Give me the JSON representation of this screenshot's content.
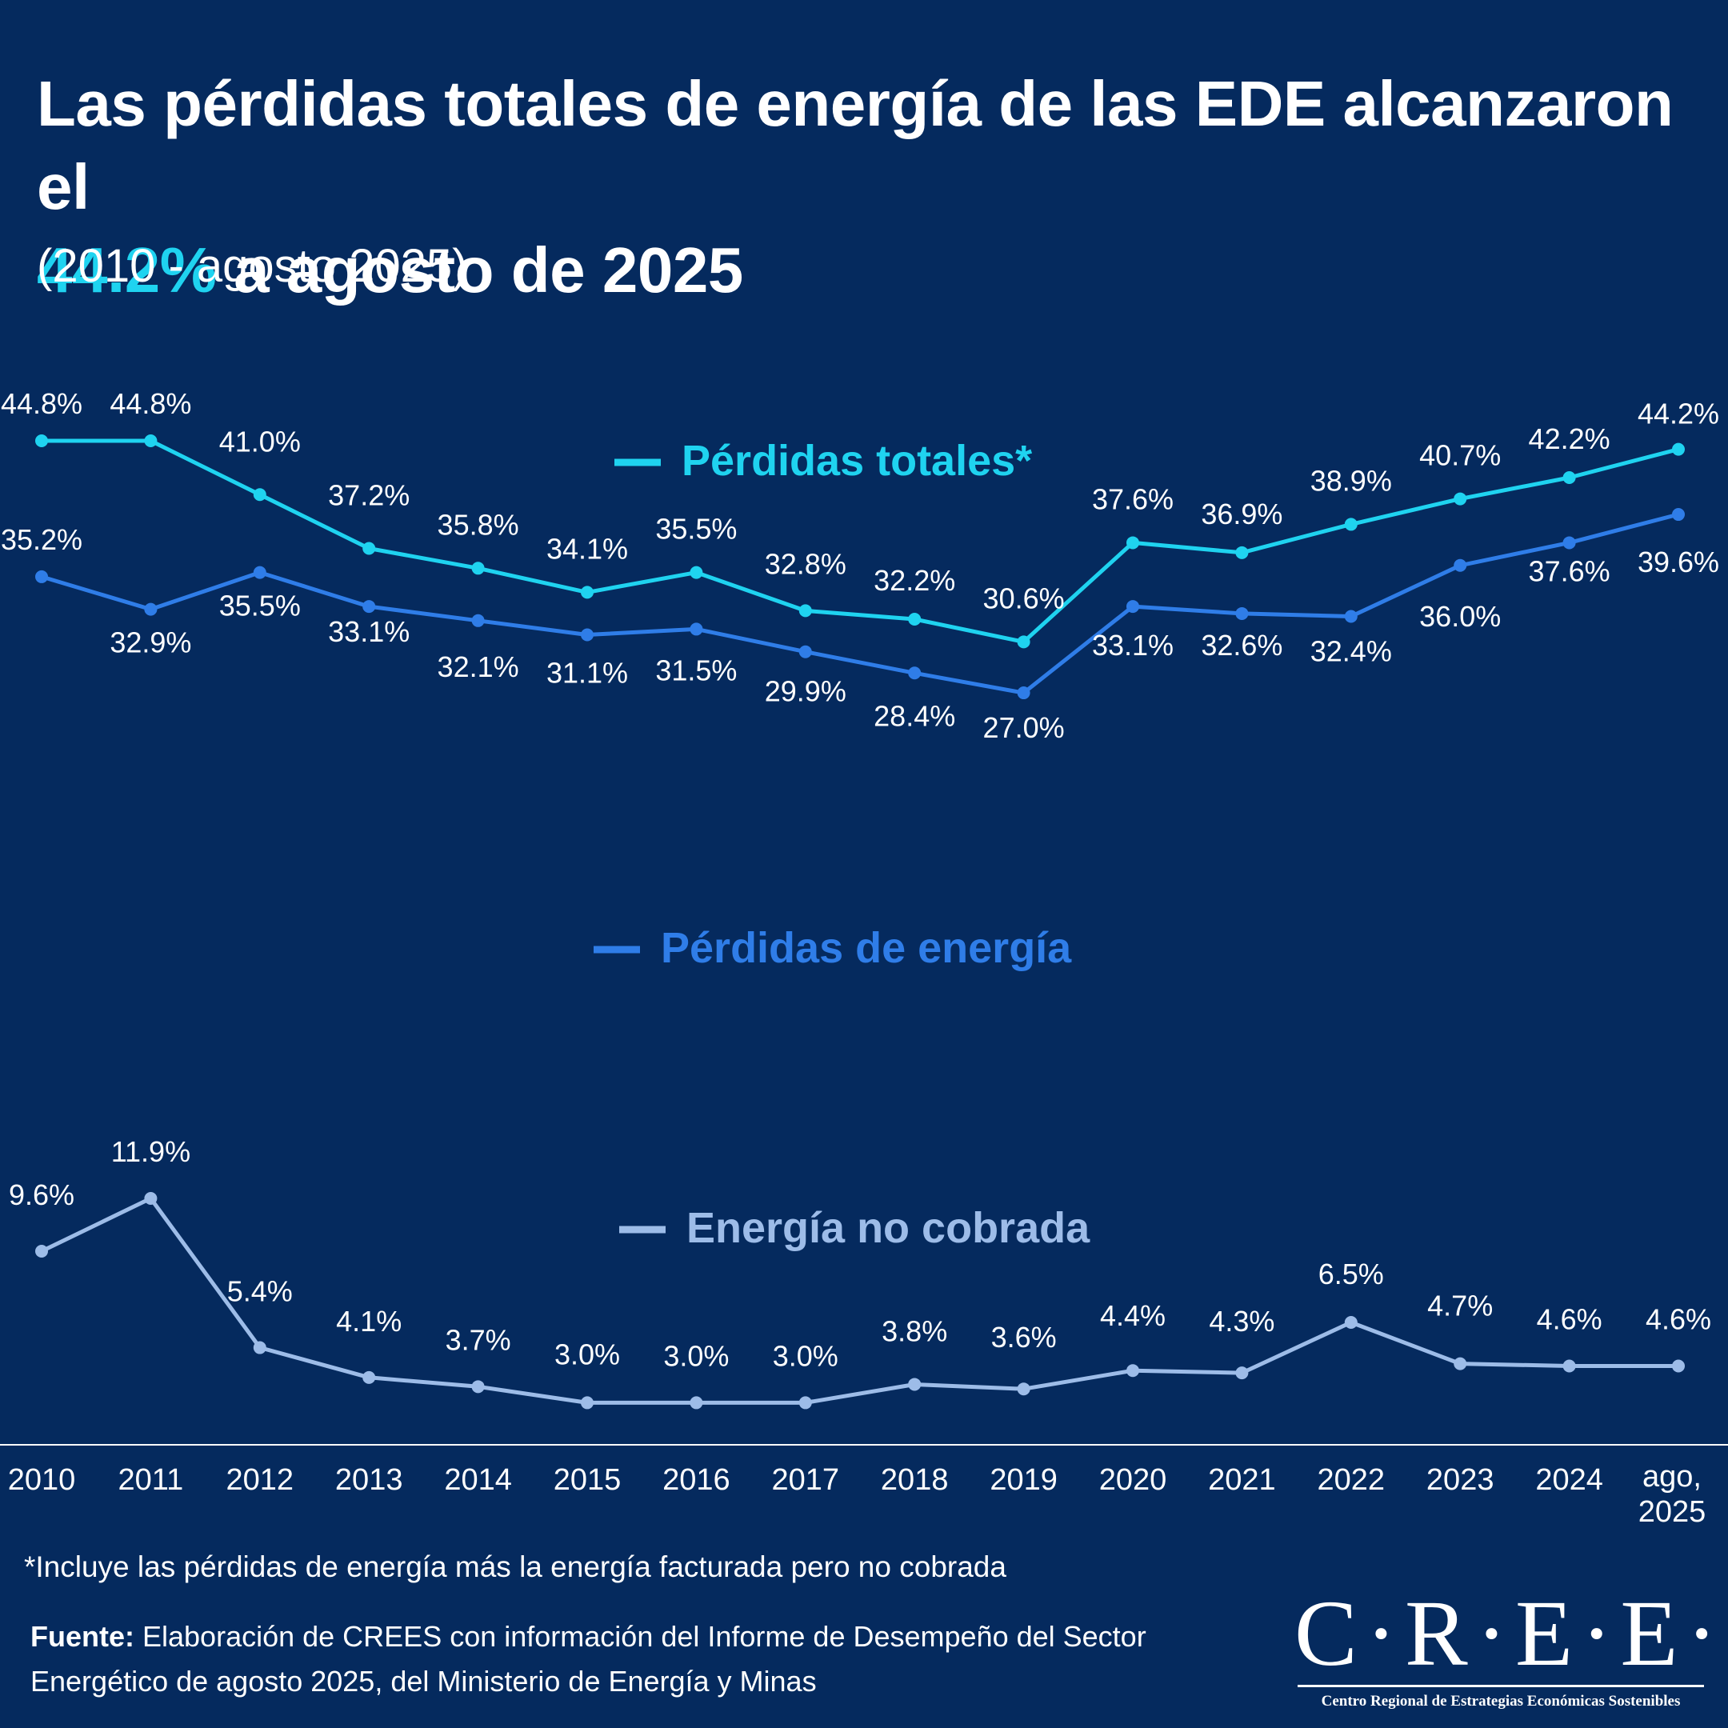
{
  "header": {
    "title_part1": "Las pérdidas totales de energía de las EDE alcanzaron el",
    "title_highlight": "44.2%",
    "title_part2": " a agosto de 2025",
    "subtitle": "(2010 - agosto 2025)"
  },
  "colors": {
    "background": "#052a5e",
    "highlight": "#1fd3f0",
    "perdidas_totales": "#1fd3f0",
    "perdidas_energia": "#2f7de8",
    "energia_no_cobrada": "#9dbce8",
    "text": "#ffffff"
  },
  "chart_data": {
    "type": "line",
    "x": [
      "2010",
      "2011",
      "2012",
      "2013",
      "2014",
      "2015",
      "2016",
      "2017",
      "2018",
      "2019",
      "2020",
      "2021",
      "2022",
      "2023",
      "2024",
      "ago, 2025"
    ],
    "x_tick_labels": [
      [
        "2010"
      ],
      [
        "2011"
      ],
      [
        "2012"
      ],
      [
        "2013"
      ],
      [
        "2014"
      ],
      [
        "2015"
      ],
      [
        "2016"
      ],
      [
        "2017"
      ],
      [
        "2018"
      ],
      [
        "2019"
      ],
      [
        "2020"
      ],
      [
        "2021"
      ],
      [
        "2022"
      ],
      [
        "2023"
      ],
      [
        "2024"
      ],
      [
        "ago,",
        "2025"
      ]
    ],
    "series": [
      {
        "name": "Pérdidas totales*",
        "key": "perdidas_totales",
        "values": [
          44.8,
          44.8,
          41.0,
          37.2,
          35.8,
          34.1,
          35.5,
          32.8,
          32.2,
          30.6,
          37.6,
          36.9,
          38.9,
          40.7,
          42.2,
          44.2
        ],
        "labels": [
          "44.8%",
          "44.8%",
          "41.0%",
          "37.2%",
          "35.8%",
          "34.1%",
          "35.5%",
          "32.8%",
          "32.2%",
          "30.6%",
          "37.6%",
          "36.9%",
          "38.9%",
          "40.7%",
          "42.2%",
          "44.2%"
        ]
      },
      {
        "name": "Pérdidas de energía",
        "key": "perdidas_energia",
        "values": [
          35.2,
          32.9,
          35.5,
          33.1,
          32.1,
          31.1,
          31.5,
          29.9,
          28.4,
          27.0,
          33.1,
          32.6,
          32.4,
          36.0,
          37.6,
          39.6
        ],
        "labels": [
          "35.2%",
          "32.9%",
          "35.5%",
          "33.1%",
          "32.1%",
          "31.1%",
          "31.5%",
          "29.9%",
          "28.4%",
          "27.0%",
          "33.1%",
          "32.6%",
          "32.4%",
          "36.0%",
          "37.6%",
          "39.6%"
        ]
      },
      {
        "name": "Energía no cobrada",
        "key": "energia_no_cobrada",
        "values": [
          9.6,
          11.9,
          5.4,
          4.1,
          3.7,
          3.0,
          3.0,
          3.0,
          3.8,
          3.6,
          4.4,
          4.3,
          6.5,
          4.7,
          4.6,
          4.6
        ],
        "labels": [
          "9.6%",
          "11.9%",
          "5.4%",
          "4.1%",
          "3.7%",
          "3.0%",
          "3.0%",
          "3.0%",
          "3.8%",
          "3.6%",
          "4.4%",
          "4.3%",
          "6.5%",
          "4.7%",
          "4.6%",
          "4.6%"
        ]
      }
    ],
    "title": "Las pérdidas totales de energía de las EDE alcanzaron el 44.2% a agosto de 2025",
    "subtitle": "(2010 - agosto 2025)",
    "xlabel": "",
    "ylabel": "",
    "grid": false
  },
  "footer": {
    "footnote": "*Incluye las pérdidas de energía más la energía facturada pero no cobrada",
    "source_label": "Fuente:",
    "source_text": " Elaboración de CREES con información del Informe de Desempeño del Sector Energético de agosto 2025, del Ministerio de Energía y Minas"
  },
  "logo": {
    "word": "C·R·E·E·S",
    "tagline": "Centro Regional de Estrategias Económicas Sostenibles"
  }
}
